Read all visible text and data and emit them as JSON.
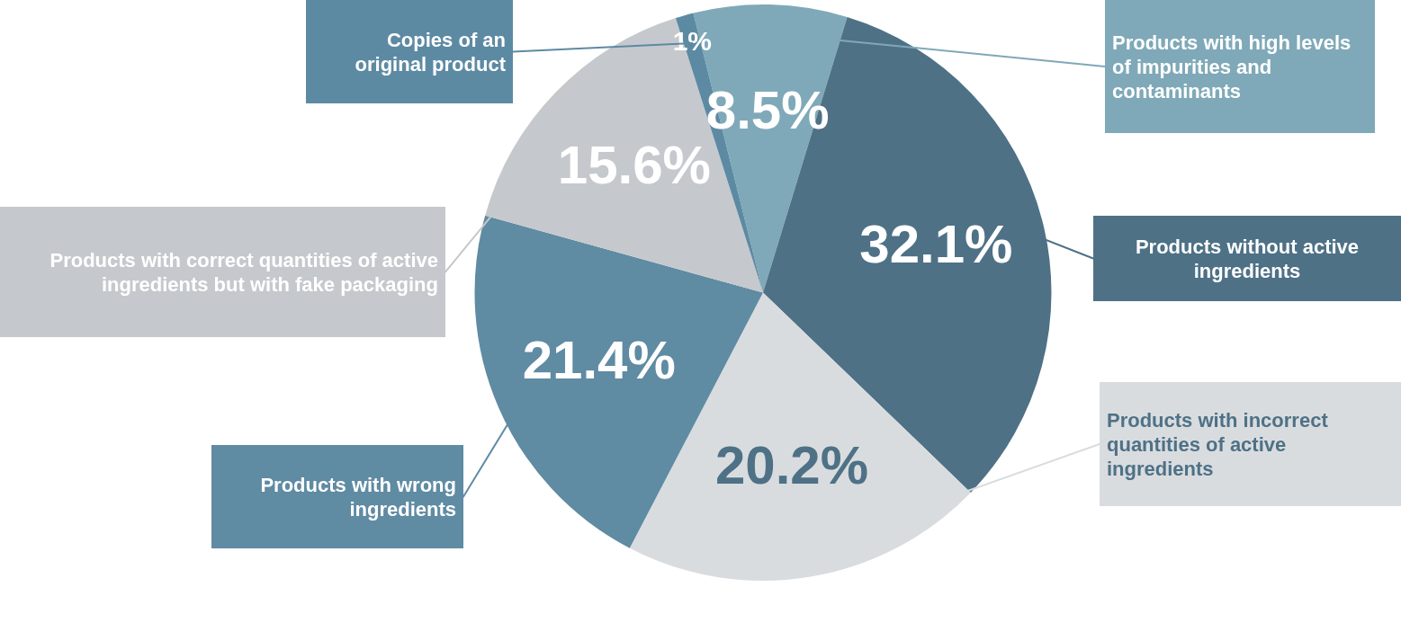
{
  "chart_data": {
    "type": "pie",
    "categories": [
      "Products with high levels of impurities and contaminants",
      "Products without active ingredients",
      "Products with incorrect quantities of active ingredients",
      "Products with wrong ingredients",
      "Products with correct quantities of active ingredients but with fake packaging",
      "Copies of an original product"
    ],
    "values": [
      8.5,
      32.1,
      20.2,
      21.4,
      15.6,
      1
    ],
    "value_labels": [
      "8.5%",
      "32.1%",
      "20.2%",
      "21.4%",
      "15.6%",
      "1%"
    ],
    "colors": [
      "#7fa9b8",
      "#4e7186",
      "#d9dcdf",
      "#5f8ba3",
      "#c5c9cd",
      "#5d8aa3"
    ]
  }
}
